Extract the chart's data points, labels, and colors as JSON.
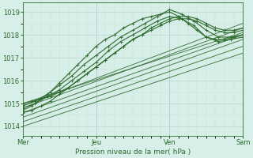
{
  "xlabel": "Pression niveau de la mer( hPa )",
  "bg_color": "#d8eee8",
  "line_color": "#2d6b2d",
  "grid_color_major": "#b8d8d0",
  "grid_color_minor": "#c8e4dc",
  "vline_color": "#c090b0",
  "ylim": [
    1013.6,
    1019.4
  ],
  "yticks": [
    1014,
    1015,
    1016,
    1017,
    1018,
    1019
  ],
  "xtick_labels": [
    "Mer",
    "Jeu",
    "Ven",
    "Sam"
  ],
  "xtick_positions": [
    0,
    48,
    96,
    144
  ],
  "total_hours": 144,
  "series": [
    {
      "x": [
        0,
        144
      ],
      "y": [
        1014.8,
        1018.3
      ],
      "wavy": false
    },
    {
      "x": [
        0,
        144
      ],
      "y": [
        1014.6,
        1018.0
      ],
      "wavy": false
    },
    {
      "x": [
        0,
        144
      ],
      "y": [
        1014.4,
        1017.8
      ],
      "wavy": false
    },
    {
      "x": [
        0,
        144
      ],
      "y": [
        1014.2,
        1017.5
      ],
      "wavy": false
    },
    {
      "x": [
        0,
        144
      ],
      "y": [
        1014.0,
        1017.2
      ],
      "wavy": false
    },
    {
      "x": [
        0,
        144
      ],
      "y": [
        1014.9,
        1018.5
      ],
      "wavy": false
    },
    {
      "x": [
        0,
        144
      ],
      "y": [
        1015.0,
        1018.1
      ],
      "wavy": false
    }
  ],
  "wavy_series": [
    {
      "pts_x": [
        0,
        8,
        16,
        24,
        32,
        40,
        48,
        56,
        64,
        72,
        80,
        88,
        96,
        104,
        112,
        120,
        128,
        136,
        144
      ],
      "pts_y": [
        1014.9,
        1015.1,
        1015.4,
        1015.8,
        1016.2,
        1016.7,
        1017.1,
        1017.5,
        1017.9,
        1018.2,
        1018.5,
        1018.8,
        1019.1,
        1018.9,
        1018.6,
        1018.2,
        1017.9,
        1017.9,
        1018.0
      ]
    },
    {
      "pts_x": [
        0,
        8,
        16,
        24,
        32,
        40,
        48,
        56,
        64,
        72,
        80,
        88,
        96,
        104,
        112,
        120,
        128,
        136,
        144
      ],
      "pts_y": [
        1014.8,
        1015.0,
        1015.3,
        1015.6,
        1016.0,
        1016.4,
        1016.8,
        1017.3,
        1017.7,
        1018.0,
        1018.3,
        1018.6,
        1018.8,
        1018.7,
        1018.4,
        1017.9,
        1017.7,
        1017.8,
        1017.9
      ]
    },
    {
      "pts_x": [
        0,
        6,
        12,
        18,
        24,
        30,
        36,
        42,
        48,
        54,
        60,
        66,
        72,
        78,
        84,
        90,
        96,
        102,
        108,
        114,
        120,
        126,
        132,
        138,
        144
      ],
      "pts_y": [
        1014.7,
        1014.9,
        1015.2,
        1015.5,
        1015.9,
        1016.3,
        1016.7,
        1017.1,
        1017.5,
        1017.8,
        1018.0,
        1018.3,
        1018.5,
        1018.7,
        1018.8,
        1018.9,
        1019.0,
        1018.8,
        1018.5,
        1018.2,
        1017.9,
        1017.8,
        1017.8,
        1017.9,
        1018.0
      ]
    },
    {
      "pts_x": [
        0,
        6,
        12,
        18,
        24,
        30,
        36,
        42,
        48,
        54,
        60,
        66,
        72,
        78,
        84,
        90,
        96,
        102,
        108,
        114,
        120,
        126,
        132,
        138,
        144
      ],
      "pts_y": [
        1015.0,
        1015.1,
        1015.2,
        1015.3,
        1015.5,
        1015.7,
        1016.0,
        1016.3,
        1016.6,
        1016.9,
        1017.2,
        1017.5,
        1017.8,
        1018.0,
        1018.2,
        1018.4,
        1018.6,
        1018.7,
        1018.7,
        1018.6,
        1018.4,
        1018.2,
        1018.1,
        1018.1,
        1018.2
      ]
    },
    {
      "pts_x": [
        0,
        6,
        12,
        18,
        24,
        30,
        36,
        42,
        48,
        54,
        60,
        66,
        72,
        78,
        84,
        90,
        96,
        102,
        108,
        114,
        120,
        126,
        132,
        138,
        144
      ],
      "pts_y": [
        1014.6,
        1014.7,
        1014.9,
        1015.1,
        1015.4,
        1015.7,
        1016.0,
        1016.3,
        1016.6,
        1016.9,
        1017.2,
        1017.5,
        1017.8,
        1018.0,
        1018.3,
        1018.5,
        1018.7,
        1018.8,
        1018.8,
        1018.7,
        1018.5,
        1018.3,
        1018.2,
        1018.2,
        1018.3
      ]
    }
  ],
  "marker": "+"
}
